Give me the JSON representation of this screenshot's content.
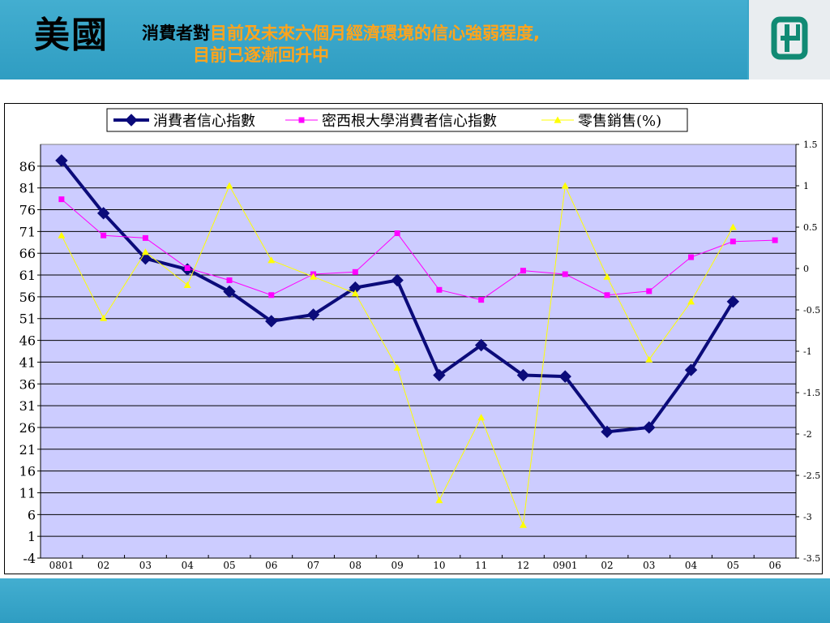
{
  "header": {
    "region": "美國",
    "title_prefix": "消費者對",
    "title_highlight": "目前及未來六個月經濟環境的信心強弱程度,",
    "title_line2": "目前已逐漸回升中"
  },
  "colors": {
    "header_bg": "#3ba7c9",
    "plot_bg": "#ccccff",
    "series1": "#0b0b7a",
    "series2": "#ff00ff",
    "series3": "#ffff00",
    "title_accent": "#ffa41c"
  },
  "logo": {
    "icon": "company-logo-icon"
  },
  "chart_data": {
    "type": "line",
    "title": "",
    "xlabel": "",
    "ylabel": "",
    "categories": [
      "0801",
      "02",
      "03",
      "04",
      "05",
      "06",
      "07",
      "08",
      "09",
      "10",
      "11",
      "12",
      "0901",
      "02",
      "03",
      "04",
      "05",
      "06"
    ],
    "ylim": [
      -4,
      91
    ],
    "yticks": [
      86,
      81,
      76,
      71,
      66,
      61,
      56,
      51,
      46,
      41,
      36,
      31,
      26,
      21,
      16,
      11,
      6,
      1,
      -4
    ],
    "y2lim": [
      -3.5,
      1.5
    ],
    "y2ticks": [
      1.5,
      1,
      0.5,
      0,
      -0.5,
      -1,
      -1.5,
      -2,
      -2.5,
      -3,
      -3.5
    ],
    "y2tick_labels": [
      "1.5",
      "1",
      "0.5",
      "0",
      "-0.5",
      "-1",
      "-1.5",
      "-2",
      "-2.5",
      "-3",
      "-3.5"
    ],
    "grid": true,
    "legend": "top-center",
    "series": [
      {
        "name": "消費者信心指數",
        "axis": "left",
        "marker": "diamond",
        "color": "#0b0b7a",
        "values": [
          87.3,
          75.2,
          64.8,
          62.3,
          57.2,
          50.4,
          51.9,
          58.1,
          59.8,
          38.0,
          44.9,
          38.0,
          37.7,
          25.0,
          26.0,
          39.2,
          54.9,
          null
        ]
      },
      {
        "name": "密西根大學消費者信心指數",
        "axis": "left",
        "marker": "square",
        "color": "#ff00ff",
        "values": [
          78.4,
          70.1,
          69.5,
          62.6,
          59.8,
          56.4,
          61.2,
          61.7,
          70.6,
          57.6,
          55.3,
          62.0,
          61.2,
          56.4,
          57.3,
          65.1,
          68.7,
          69.0
        ]
      },
      {
        "name": "零售銷售(%)",
        "axis": "right",
        "marker": "triangle",
        "color": "#ffff00",
        "values": [
          0.4,
          -0.6,
          0.2,
          -0.2,
          1.0,
          0.1,
          -0.1,
          -0.3,
          -1.2,
          -2.8,
          -1.8,
          -3.1,
          1.0,
          -0.1,
          -1.1,
          -0.4,
          0.5,
          null
        ]
      }
    ]
  }
}
